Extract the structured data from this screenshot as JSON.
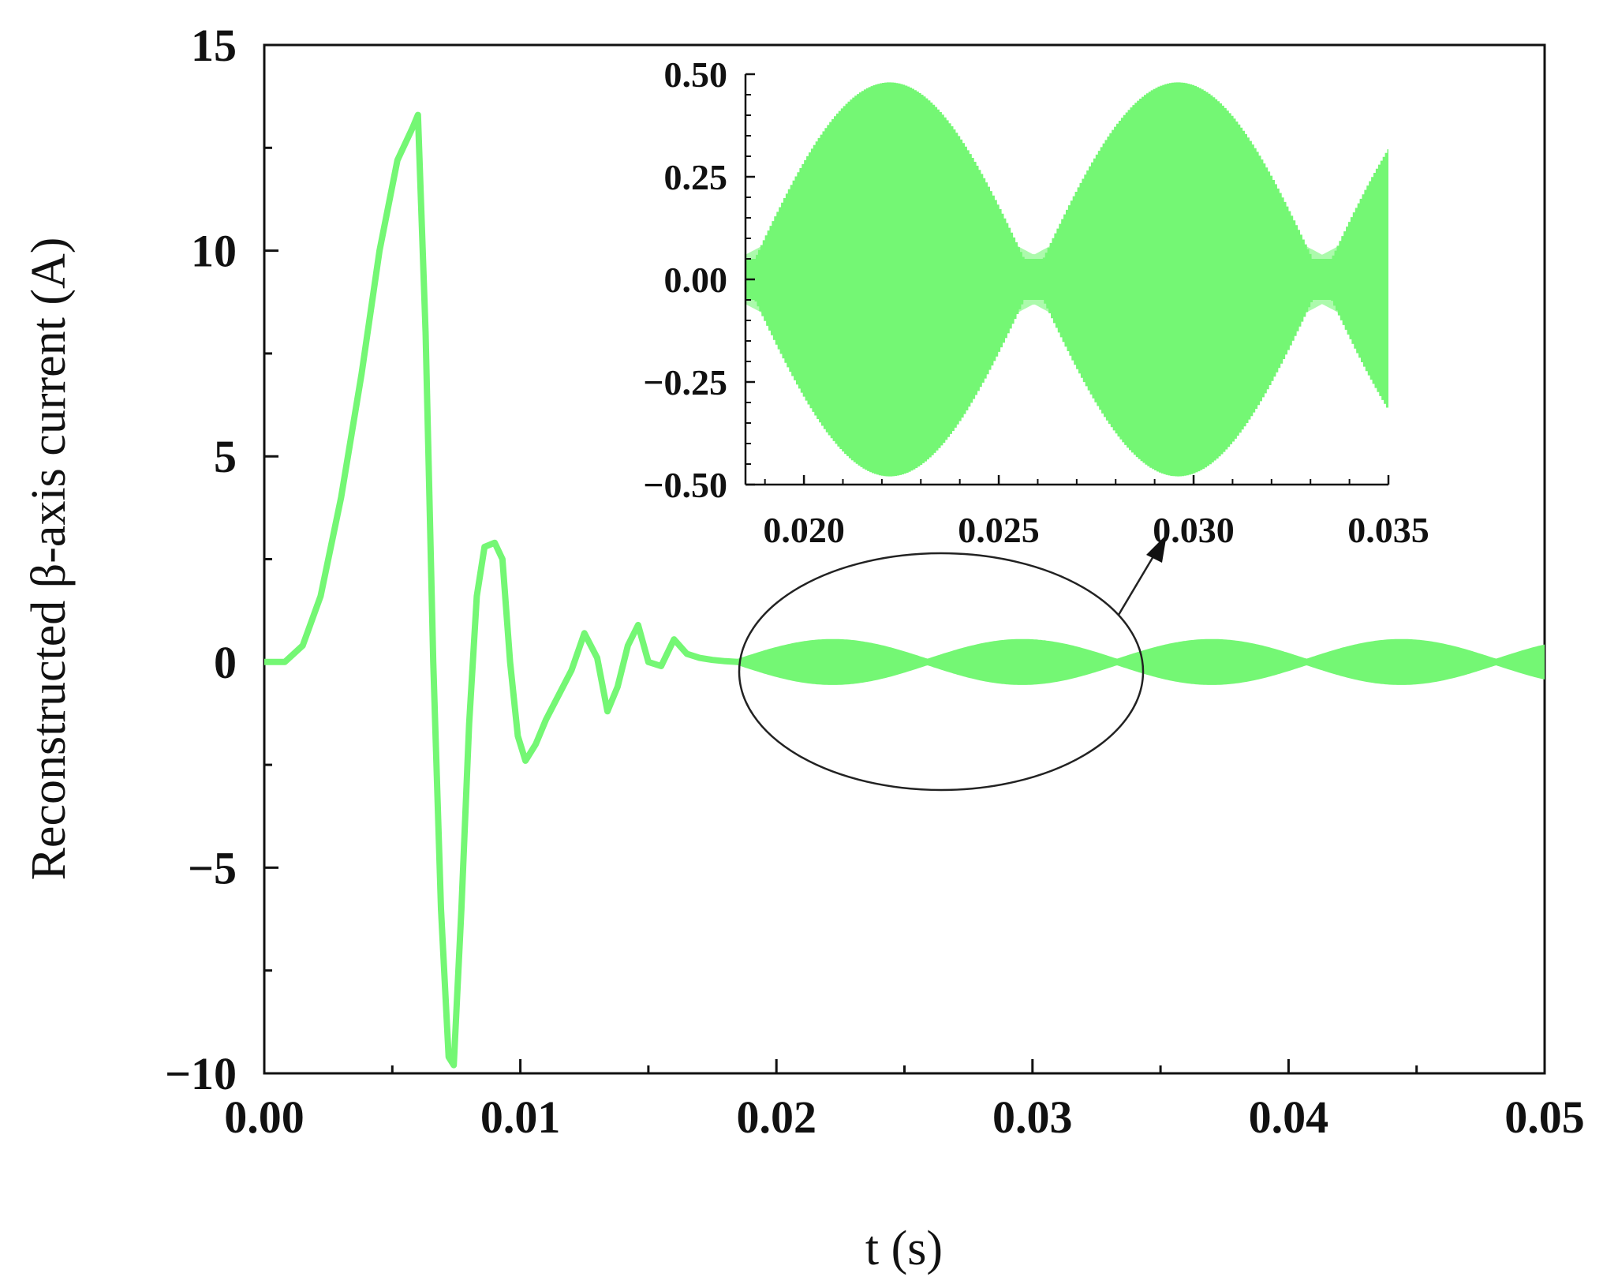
{
  "chart_data": [
    {
      "type": "line",
      "ylabel": "Reconstructed β-axis current (A)",
      "xlabel": "t (s)",
      "xlim": [
        0,
        0.05
      ],
      "ylim": [
        -10,
        15
      ],
      "x_ticks": [
        0.0,
        0.01,
        0.02,
        0.03,
        0.04,
        0.05
      ],
      "x_tick_labels": [
        "0.00",
        "0.01",
        "0.02",
        "0.03",
        "0.04",
        "0.05"
      ],
      "y_ticks": [
        -10,
        -5,
        0,
        5,
        10,
        15
      ],
      "y_tick_labels": [
        "−10",
        "−5",
        "0",
        "5",
        "10",
        "15"
      ],
      "line_color": "#74f774",
      "grid": false,
      "series": [
        {
          "x": [
            0.0,
            0.0008,
            0.0015,
            0.0022,
            0.003,
            0.0038,
            0.0045,
            0.0052,
            0.0058,
            0.006,
            0.0063,
            0.0066,
            0.0069,
            0.0072,
            0.0074,
            0.0077,
            0.008,
            0.0083,
            0.0086,
            0.009,
            0.0093,
            0.0096,
            0.0099,
            0.0102,
            0.0106,
            0.011,
            0.0115,
            0.012,
            0.0125,
            0.013,
            0.0134,
            0.0138,
            0.0142,
            0.0146,
            0.015,
            0.0155,
            0.016,
            0.0165,
            0.017,
            0.0175,
            0.018,
            0.0185
          ],
          "y": [
            0.0,
            0.0,
            0.4,
            1.6,
            4.0,
            7.0,
            10.0,
            12.2,
            13.0,
            13.3,
            8.0,
            0.0,
            -6.0,
            -9.6,
            -9.8,
            -6.0,
            -1.5,
            1.6,
            2.8,
            2.9,
            2.5,
            0.0,
            -1.8,
            -2.4,
            -2.0,
            -1.4,
            -0.8,
            -0.2,
            0.7,
            0.1,
            -1.2,
            -0.6,
            0.4,
            0.9,
            0.0,
            -0.1,
            0.55,
            0.2,
            0.1,
            0.05,
            0.02,
            0.0
          ]
        }
      ],
      "oscillation": {
        "x_start": 0.0185,
        "x_end": 0.05,
        "amplitude": 0.48,
        "envelope_zeros": [
          0.0185,
          0.0259,
          0.0337,
          0.0411,
          0.0485
        ]
      }
    },
    {
      "type": "line",
      "inset": true,
      "xlim": [
        0.0185,
        0.035
      ],
      "ylim": [
        -0.5,
        0.5
      ],
      "x_ticks": [
        0.02,
        0.025,
        0.03,
        0.035
      ],
      "x_tick_labels": [
        "0.020",
        "0.025",
        "0.030",
        "0.035"
      ],
      "y_ticks": [
        0.5,
        0.25,
        0.0,
        -0.25,
        -0.5
      ],
      "y_tick_labels": [
        "0.50",
        "0.25",
        "0.00",
        "−0.25",
        "−0.50"
      ],
      "line_color": "#74f774",
      "amplitude": 0.48,
      "envelope_zeros": [
        0.0185,
        0.0259,
        0.0337,
        0.0411
      ]
    }
  ]
}
